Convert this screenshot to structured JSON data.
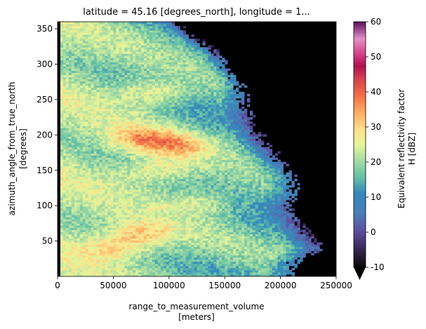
{
  "chart_data": {
    "type": "heatmap",
    "title": "latitude = 45.16 [degrees_north], longitude = 1...",
    "xlabel_line1": "range_to_measurement_volume",
    "xlabel_line2": "[meters]",
    "ylabel_line1": "azimuth_angle_from_true_north",
    "ylabel_line2": "[degrees]",
    "xlim": [
      0,
      250000
    ],
    "ylim": [
      0,
      360
    ],
    "x_ticks": [
      0,
      50000,
      100000,
      150000,
      200000,
      250000
    ],
    "y_ticks": [
      50,
      100,
      150,
      200,
      250,
      300,
      350
    ],
    "x_tick_labels": [
      "0",
      "50000",
      "100000",
      "150000",
      "200000",
      "250000"
    ],
    "y_tick_labels": [
      "50",
      "100",
      "150",
      "200",
      "250",
      "300",
      "350"
    ],
    "colorbar": {
      "label_line1": "Equivalent reflectivity factor",
      "label_line2": "H [dBZ]",
      "range": [
        -10,
        60
      ],
      "ticks": [
        -10,
        0,
        10,
        20,
        30,
        40,
        50,
        60
      ],
      "tick_labels": [
        "-10",
        "0",
        "10",
        "20",
        "30",
        "40",
        "50",
        "60"
      ],
      "extend": "min",
      "colormap": "Spectral_r"
    },
    "background_color": "#000000",
    "echo_extent": [
      {
        "azimuth": 0,
        "range_m": 210000
      },
      {
        "azimuth": 20,
        "range_m": 212000
      },
      {
        "azimuth": 40,
        "range_m": 235000
      },
      {
        "azimuth": 60,
        "range_m": 225000
      },
      {
        "azimuth": 80,
        "range_m": 215000
      },
      {
        "azimuth": 100,
        "range_m": 208000
      },
      {
        "azimuth": 120,
        "range_m": 212000
      },
      {
        "azimuth": 140,
        "range_m": 210000
      },
      {
        "azimuth": 160,
        "range_m": 200000
      },
      {
        "azimuth": 180,
        "range_m": 190000
      },
      {
        "azimuth": 200,
        "range_m": 180000
      },
      {
        "azimuth": 220,
        "range_m": 172000
      },
      {
        "azimuth": 240,
        "range_m": 168000
      },
      {
        "azimuth": 260,
        "range_m": 165000
      },
      {
        "azimuth": 280,
        "range_m": 160000
      },
      {
        "azimuth": 300,
        "range_m": 150000
      },
      {
        "azimuth": 320,
        "range_m": 140000
      },
      {
        "azimuth": 340,
        "range_m": 120000
      },
      {
        "azimuth": 360,
        "range_m": 105000
      }
    ],
    "high_reflectivity_regions": [
      {
        "azimuth": 195,
        "range_m": 75000,
        "dBZ": 33
      },
      {
        "azimuth": 185,
        "range_m": 110000,
        "dBZ": 32
      },
      {
        "azimuth": 150,
        "range_m": 90000,
        "dBZ": 30
      },
      {
        "azimuth": 260,
        "range_m": 85000,
        "dBZ": 30
      },
      {
        "azimuth": 60,
        "range_m": 75000,
        "dBZ": 32
      },
      {
        "azimuth": 40,
        "range_m": 50000,
        "dBZ": 30
      },
      {
        "azimuth": 105,
        "range_m": 130000,
        "dBZ": 28
      }
    ]
  }
}
